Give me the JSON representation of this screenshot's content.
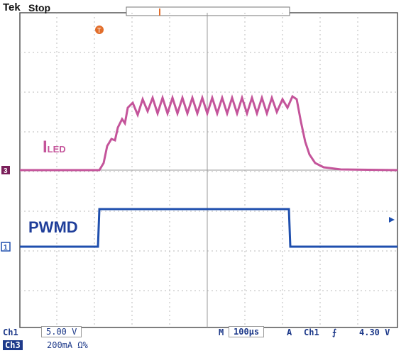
{
  "header": {
    "brand": "Tek",
    "state": "Stop"
  },
  "labels": {
    "iled_main": "I",
    "iled_sub": "LED",
    "pwmd": "PWMD"
  },
  "markers": {
    "trigger": "T",
    "ch3": "3",
    "ch1": "1"
  },
  "status": {
    "ch1_name": "Ch1",
    "ch1_scale": "5.00 V",
    "ch3_name": "Ch3",
    "ch3_scale": "200mA Ω%",
    "m_label": "M",
    "timebase": "100µs",
    "a_label": "A",
    "trig_source": "Ch1",
    "trig_slope": "⨍",
    "trig_level": "4.30 V"
  },
  "colors": {
    "grid": "#bbbbbb",
    "iled": "#c4549a",
    "pwmd": "#1f4fae",
    "trigger": "#e26d2a",
    "status_text": "#1e3a8a"
  },
  "icons": {
    "right-arrow": "right-arrow-icon"
  }
}
